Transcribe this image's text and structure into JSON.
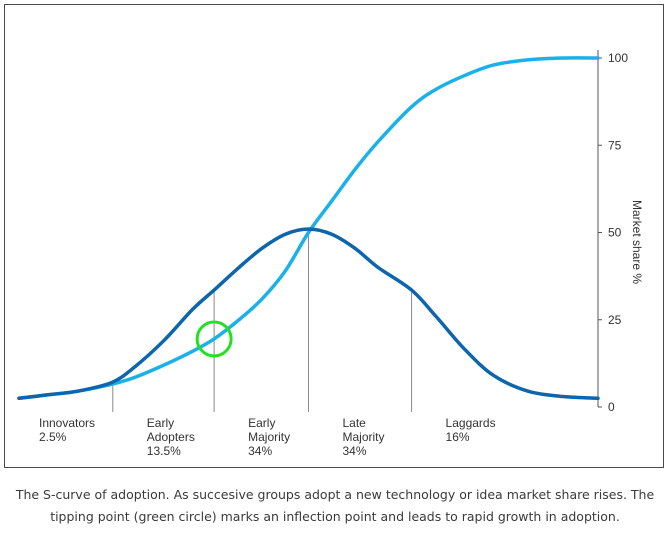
{
  "chart_data": {
    "type": "line",
    "ylabel": "Market share %",
    "ylim": [
      0,
      100
    ],
    "yticks": [
      0,
      25,
      50,
      75,
      100
    ],
    "x_domain": [
      0,
      100
    ],
    "segments": [
      {
        "name": "Innovators",
        "share": "2.5%",
        "x_start": 0,
        "x_end": 16.2
      },
      {
        "name": "Early\nAdopters",
        "share": "13.5%",
        "x_start": 16.2,
        "x_end": 33.7
      },
      {
        "name": "Early\nMajority",
        "share": "34%",
        "x_start": 33.7,
        "x_end": 50
      },
      {
        "name": "Late\nMajority",
        "share": "34%",
        "x_start": 50,
        "x_end": 67.8
      },
      {
        "name": "Laggards",
        "share": "16%",
        "x_start": 67.8,
        "x_end": 100
      }
    ],
    "series": [
      {
        "color": "#1ab1eb",
        "x": [
          0,
          5,
          10,
          16,
          20,
          25,
          30,
          33.7,
          38,
          42,
          46,
          50,
          54,
          58,
          62,
          67.8,
          72,
          77,
          82,
          88,
          94,
          100
        ],
        "y": [
          2.5,
          3.5,
          4.5,
          6.5,
          8.5,
          12,
          16,
          19.5,
          25,
          31,
          39,
          50,
          59,
          68,
          76,
          86,
          91,
          95,
          98,
          99.5,
          100,
          100
        ]
      },
      {
        "color": "#0c65ad",
        "x": [
          0,
          5,
          10,
          16,
          20,
          25,
          30,
          33.7,
          38,
          42,
          46,
          50,
          54,
          58,
          62,
          67.8,
          72,
          77,
          82,
          88,
          94,
          100
        ],
        "y": [
          2.5,
          3.5,
          4.5,
          7,
          11.5,
          19,
          28,
          33.5,
          40,
          45.5,
          49.5,
          51,
          49.5,
          45.5,
          40,
          33.5,
          26,
          16.5,
          9,
          4.5,
          3,
          2.5
        ]
      }
    ],
    "annotations": [
      {
        "type": "circle",
        "color": "#22e022",
        "x": 33.7,
        "y": 19.5
      }
    ]
  },
  "caption": [
    "The S-curve of adoption. As succesive groups adopt a new technology or idea market share rises. The",
    "tipping point (green circle) marks an inflection point and leads to rapid growth in adoption."
  ]
}
